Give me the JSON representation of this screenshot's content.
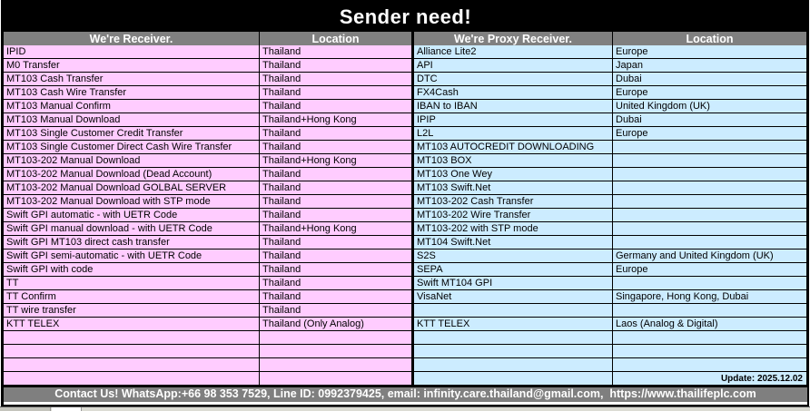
{
  "title": "Sender need!",
  "columns": [
    {
      "label": "We're Receiver."
    },
    {
      "label": "Location"
    },
    {
      "label": "We're Proxy Receiver."
    },
    {
      "label": "Location"
    }
  ],
  "rows": [
    {
      "c": [
        "IPID",
        "Thailand",
        "Alliance Lite2",
        "Europe"
      ]
    },
    {
      "c": [
        "M0 Transfer",
        "Thailand",
        "API",
        "Japan"
      ]
    },
    {
      "c": [
        "MT103 Cash Transfer",
        "Thailand",
        "DTC",
        "Dubai"
      ]
    },
    {
      "c": [
        "MT103 Cash Wire Transfer",
        "Thailand",
        "FX4Cash",
        "Europe"
      ]
    },
    {
      "c": [
        "MT103 Manual Confirm",
        "Thailand",
        "IBAN to IBAN",
        "United Kingdom (UK)"
      ]
    },
    {
      "c": [
        "MT103 Manual Download",
        "Thailand+Hong Kong",
        "IPIP",
        "Dubai"
      ]
    },
    {
      "c": [
        "MT103 Single Customer Credit Transfer",
        "Thailand",
        "L2L",
        "Europe"
      ]
    },
    {
      "c": [
        "MT103 Single Customer Direct Cash Wire Transfer",
        "Thailand",
        "MT103 AUTOCREDIT DOWNLOADING",
        ""
      ]
    },
    {
      "c": [
        "MT103-202 Manual Download",
        "Thailand+Hong Kong",
        "MT103 BOX",
        ""
      ]
    },
    {
      "c": [
        "MT103-202 Manual Download (Dead Account)",
        "Thailand",
        "MT103 One Wey",
        ""
      ]
    },
    {
      "c": [
        "MT103-202 Manual Download GOLBAL SERVER",
        "Thailand",
        "MT103 Swift.Net",
        ""
      ]
    },
    {
      "c": [
        "MT103-202 Manual Download with STP mode",
        "Thailand",
        "MT103-202 Cash Transfer",
        ""
      ]
    },
    {
      "c": [
        "Swift GPI automatic - with UETR Code",
        "Thailand",
        "MT103-202 Wire Transfer",
        ""
      ]
    },
    {
      "c": [
        "Swift GPI manual download - with UETR Code",
        "Thailand+Hong Kong",
        "MT103-202 with STP mode",
        ""
      ]
    },
    {
      "c": [
        "Swift GPI MT103 direct cash transfer",
        "Thailand",
        "MT104 Swift.Net",
        ""
      ]
    },
    {
      "c": [
        "Swift GPI semi-automatic - with UETR Code",
        "Thailand",
        "S2S",
        "Germany and United Kingdom (UK)"
      ]
    },
    {
      "c": [
        "Swift GPI with code",
        "Thailand",
        "SEPA",
        "Europe"
      ]
    },
    {
      "c": [
        "TT",
        "Thailand",
        "Swift MT104 GPI",
        ""
      ]
    },
    {
      "c": [
        "TT Confirm",
        "Thailand",
        "VisaNet",
        "Singapore, Hong Kong, Dubai"
      ]
    },
    {
      "c": [
        "TT wire transfer",
        "Thailand",
        "",
        ""
      ]
    },
    {
      "c": [
        "KTT TELEX",
        "Thailand (Only Analog)",
        "KTT TELEX",
        "Laos (Analog & Digital)"
      ]
    },
    {
      "c": [
        "",
        "",
        "",
        ""
      ]
    },
    {
      "c": [
        "",
        "",
        "",
        ""
      ]
    },
    {
      "c": [
        "",
        "",
        "",
        ""
      ]
    },
    {
      "c": [
        "",
        "",
        "",
        ""
      ],
      "update": true
    }
  ],
  "update_label": "Update: 2025.12.02",
  "footer": {
    "contact": "Contact Us! WhatsApp:+66 98 353 7529, Line ID: 0992379425, email: infinity.care.thailand@gmail.com,  https://www.thailifeplc.com"
  },
  "colors": {
    "pink": "#FFCCFF",
    "blue": "#CCECFF",
    "header_gray": "#808080",
    "bar_gray": "#7F7F7F",
    "title_bg": "#000000"
  }
}
